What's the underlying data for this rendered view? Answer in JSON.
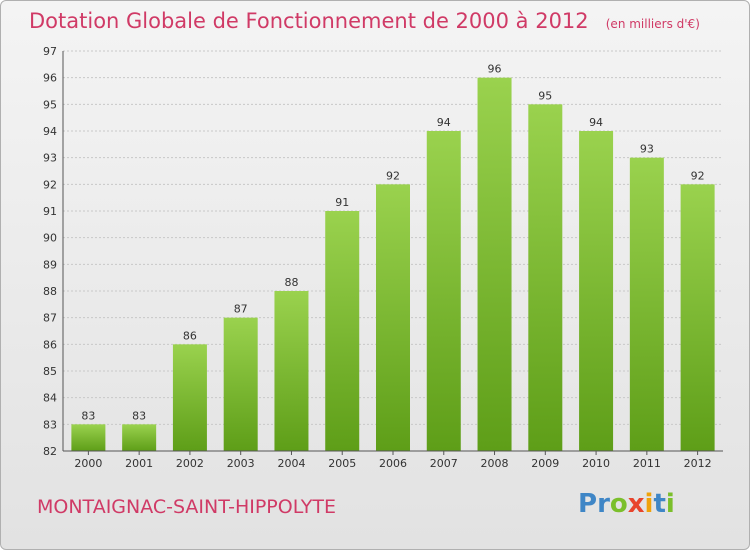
{
  "chart_data": {
    "type": "bar",
    "title": "Dotation Globale de Fonctionnement de 2000 à 2012",
    "subtitle": "(en milliers d'€)",
    "categories": [
      "2000",
      "2001",
      "2002",
      "2003",
      "2004",
      "2005",
      "2006",
      "2007",
      "2008",
      "2009",
      "2010",
      "2011",
      "2012"
    ],
    "values": [
      83,
      83,
      86,
      87,
      88,
      91,
      92,
      94,
      96,
      95,
      94,
      93,
      92
    ],
    "ylim": [
      82,
      97
    ],
    "yticks": [
      82,
      83,
      84,
      85,
      86,
      87,
      88,
      89,
      90,
      91,
      92,
      93,
      94,
      95,
      96,
      97
    ],
    "grid": true,
    "bar_color": "#7cc230",
    "title_color": "#d03a66"
  },
  "footer": {
    "commune": "MONTAIGNAC-SAINT-HIPPOLYTE",
    "logo_letters": [
      {
        "ch": "P",
        "color": "#3f86c6"
      },
      {
        "ch": "r",
        "color": "#3f86c6"
      },
      {
        "ch": "o",
        "color": "#7bbf2b"
      },
      {
        "ch": "x",
        "color": "#e8442c"
      },
      {
        "ch": "i",
        "color": "#f0a20a"
      },
      {
        "ch": "t",
        "color": "#3f86c6"
      },
      {
        "ch": "i",
        "color": "#7bbf2b"
      }
    ]
  }
}
